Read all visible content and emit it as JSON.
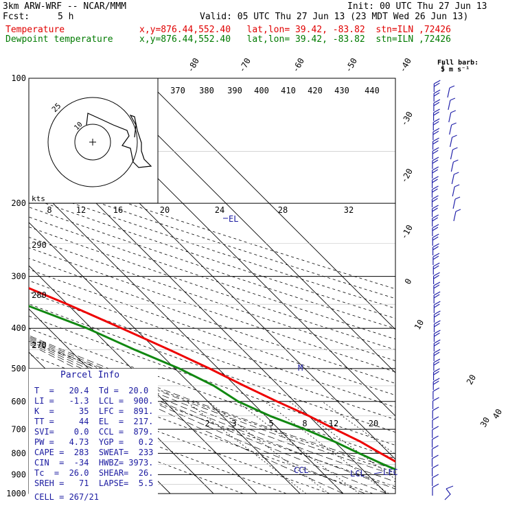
{
  "header": {
    "model": "3km ARW-WRF -- NCAR/MMM",
    "init": "Init: 00 UTC Thu 27 Jun 13",
    "fcst_label": "Fcst:",
    "fcst_value": "5 h",
    "valid": "Valid: 05 UTC Thu 27 Jun 13 (23 MDT Wed 26 Jun 13)",
    "temp_name": "Temperature",
    "temp_loc": "x,y=876.44,552.40   lat,lon= 39.42, -83.82  stn=ILN ,72426",
    "dew_name": "Dewpoint temperature",
    "dew_loc": "x,y=876.44,552.40   lat,lon= 39.42, -83.82  stn=ILN ,72426"
  },
  "wind_key": {
    "line1": "Full barb:",
    "line2": "5 m s⁻¹"
  },
  "parcel": {
    "title": "Parcel Info",
    "rows": [
      "T  =   20.4  Td =  20.0",
      "LI =   -1.3  LCL =  900.",
      "K  =     35  LFC =  891.",
      "TT =     44  EL  =  217.",
      "SVI=    0.0  CCL =  879.",
      "PW =   4.73  YGP =   0.2",
      "CAPE =  283  SWEAT=  233",
      "CIN  =  -34  HWBZ= 3973.",
      "Tc  =  26.0  SHEAR=  26.",
      "SREH =   71  LAPSE=  5.5"
    ],
    "cell": "CELL = 267/21"
  },
  "labels": {
    "el": "EL",
    "ccl": "CCL",
    "lcl": "LCL",
    "lfc": "LFC",
    "m": "M",
    "kts": "kts"
  },
  "chart_data": {
    "type": "line",
    "title": "",
    "xlabel": "",
    "ylabel": "",
    "pressure_ticks": [
      "100",
      "200",
      "300",
      "400",
      "500",
      "600",
      "700",
      "800",
      "900",
      "1000"
    ],
    "isotherm_ticks": [
      "-80",
      "-70",
      "-60",
      "-50",
      "-40",
      "-30",
      "-20",
      "-10",
      "0",
      "10",
      "20",
      "30",
      "40"
    ],
    "theta_ticks": [
      "370",
      "380",
      "390",
      "400",
      "410",
      "420",
      "430",
      "440",
      "290",
      "280",
      "270"
    ],
    "mixing_ratio_ticks": [
      "2",
      "3",
      "5",
      "8",
      "12",
      "20"
    ],
    "hodograph_ring_labels": [
      "8",
      "12",
      "16",
      "20",
      "24",
      "28",
      "32"
    ],
    "hodograph_circle_labels": [
      "25",
      "10"
    ],
    "colors": {
      "temperature": "#ee0000",
      "dewpoint": "#118811",
      "wind": "#2222aa"
    },
    "series": [
      {
        "name": "Temperature",
        "points": [
          [
            100,
            -42
          ],
          [
            125,
            -50
          ],
          [
            150,
            -52
          ],
          [
            175,
            -51
          ],
          [
            200,
            -46
          ],
          [
            250,
            -37
          ],
          [
            300,
            -29
          ],
          [
            350,
            -20
          ],
          [
            400,
            -13
          ],
          [
            450,
            -7
          ],
          [
            500,
            -2
          ],
          [
            550,
            2
          ],
          [
            600,
            6
          ],
          [
            650,
            10
          ],
          [
            700,
            13
          ],
          [
            750,
            16
          ],
          [
            800,
            18
          ],
          [
            850,
            20
          ],
          [
            880,
            21
          ],
          [
            900,
            23
          ],
          [
            930,
            25
          ],
          [
            950,
            24
          ],
          [
            970,
            22
          ]
        ]
      },
      {
        "name": "Dewpoint temperature",
        "points": [
          [
            100,
            -70
          ],
          [
            125,
            -74
          ],
          [
            150,
            -78
          ],
          [
            175,
            -79
          ],
          [
            200,
            -72
          ],
          [
            250,
            -58
          ],
          [
            300,
            -42
          ],
          [
            350,
            -30
          ],
          [
            400,
            -21
          ],
          [
            450,
            -15
          ],
          [
            500,
            -9
          ],
          [
            550,
            -5
          ],
          [
            600,
            -3
          ],
          [
            650,
            1
          ],
          [
            700,
            6
          ],
          [
            750,
            10
          ],
          [
            800,
            13
          ],
          [
            850,
            16
          ],
          [
            880,
            18
          ],
          [
            900,
            19
          ],
          [
            930,
            18
          ],
          [
            950,
            18.5
          ],
          [
            970,
            20
          ]
        ]
      }
    ]
  }
}
